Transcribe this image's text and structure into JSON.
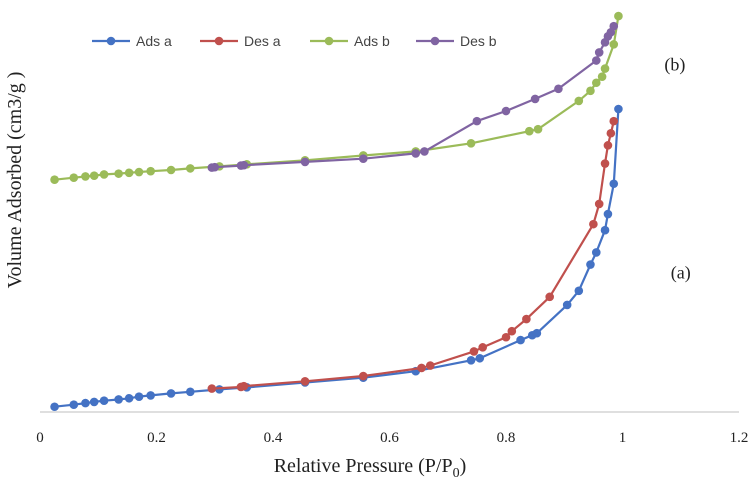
{
  "chart_data": {
    "type": "line",
    "title": "",
    "xlabel": "Relative Pressure (P/P0)",
    "xlabel_main": "Relative Pressure (P/P",
    "xlabel_sub": "0",
    "xlabel_end": ")",
    "ylabel": "Volume Adsorbed (cm3/g )",
    "xlim": [
      0,
      1.2
    ],
    "ylim": [
      0,
      100
    ],
    "y_ticks_shown": false,
    "x_ticks": [
      0,
      0.2,
      0.4,
      0.6,
      0.8,
      1,
      1.2
    ],
    "x_tick_labels": [
      "0",
      "0.2",
      "0.4",
      "0.6",
      "0.8",
      "1",
      "1.2"
    ],
    "grid": false,
    "legend_position": "top-left",
    "annotations": [
      {
        "text": "(b)",
        "x": 1.09,
        "y": 84.5
      },
      {
        "text": "(a)",
        "x": 1.1,
        "y": 33
      }
    ],
    "series": [
      {
        "name": "Ads a",
        "color": "#4472C4",
        "x": [
          0.025,
          0.058,
          0.078,
          0.093,
          0.11,
          0.135,
          0.153,
          0.17,
          0.19,
          0.225,
          0.258,
          0.308,
          0.355,
          0.455,
          0.555,
          0.645,
          0.74,
          0.755,
          0.825,
          0.845,
          0.853,
          0.905,
          0.925,
          0.945,
          0.955,
          0.97,
          0.975,
          0.985,
          0.993
        ],
        "y": [
          1.3,
          1.8,
          2.2,
          2.5,
          2.8,
          3.1,
          3.4,
          3.8,
          4.1,
          4.6,
          5.0,
          5.6,
          6.1,
          7.3,
          8.5,
          10.1,
          12.8,
          13.3,
          17.8,
          19.0,
          19.5,
          26.5,
          30.0,
          36.5,
          39.5,
          45.0,
          49.0,
          56.5,
          75.0
        ]
      },
      {
        "name": "Des a",
        "color": "#C0504D",
        "x": [
          0.985,
          0.98,
          0.975,
          0.97,
          0.96,
          0.95,
          0.875,
          0.835,
          0.81,
          0.8,
          0.76,
          0.745,
          0.67,
          0.655,
          0.555,
          0.455,
          0.35,
          0.345,
          0.295
        ],
        "y": [
          72.0,
          69.0,
          66.0,
          61.5,
          51.5,
          46.5,
          28.5,
          23.0,
          20.0,
          18.5,
          16.0,
          15.0,
          11.5,
          10.9,
          8.9,
          7.6,
          6.4,
          6.2,
          5.8
        ]
      },
      {
        "name": "Ads b",
        "color": "#9BBB59",
        "x": [
          0.025,
          0.058,
          0.078,
          0.093,
          0.11,
          0.135,
          0.153,
          0.17,
          0.19,
          0.225,
          0.258,
          0.308,
          0.355,
          0.455,
          0.555,
          0.645,
          0.74,
          0.84,
          0.855,
          0.925,
          0.945,
          0.955,
          0.965,
          0.97,
          0.985,
          0.993
        ],
        "y": [
          57.5,
          58.0,
          58.3,
          58.5,
          58.8,
          59.0,
          59.2,
          59.4,
          59.6,
          59.9,
          60.3,
          60.8,
          61.3,
          62.3,
          63.5,
          64.5,
          66.5,
          69.5,
          70.0,
          77.0,
          79.5,
          81.5,
          83.0,
          85.0,
          91.0,
          98.0
        ]
      },
      {
        "name": "Des b",
        "color": "#8064A2",
        "x": [
          0.985,
          0.98,
          0.975,
          0.97,
          0.96,
          0.955,
          0.89,
          0.85,
          0.8,
          0.75,
          0.66,
          0.645,
          0.555,
          0.455,
          0.35,
          0.345,
          0.3,
          0.295
        ],
        "y": [
          95.5,
          94.0,
          93.0,
          91.5,
          89.0,
          87.0,
          80.0,
          77.5,
          74.5,
          72.0,
          64.5,
          64.0,
          62.7,
          61.9,
          61.1,
          61.0,
          60.6,
          60.5
        ]
      }
    ]
  }
}
